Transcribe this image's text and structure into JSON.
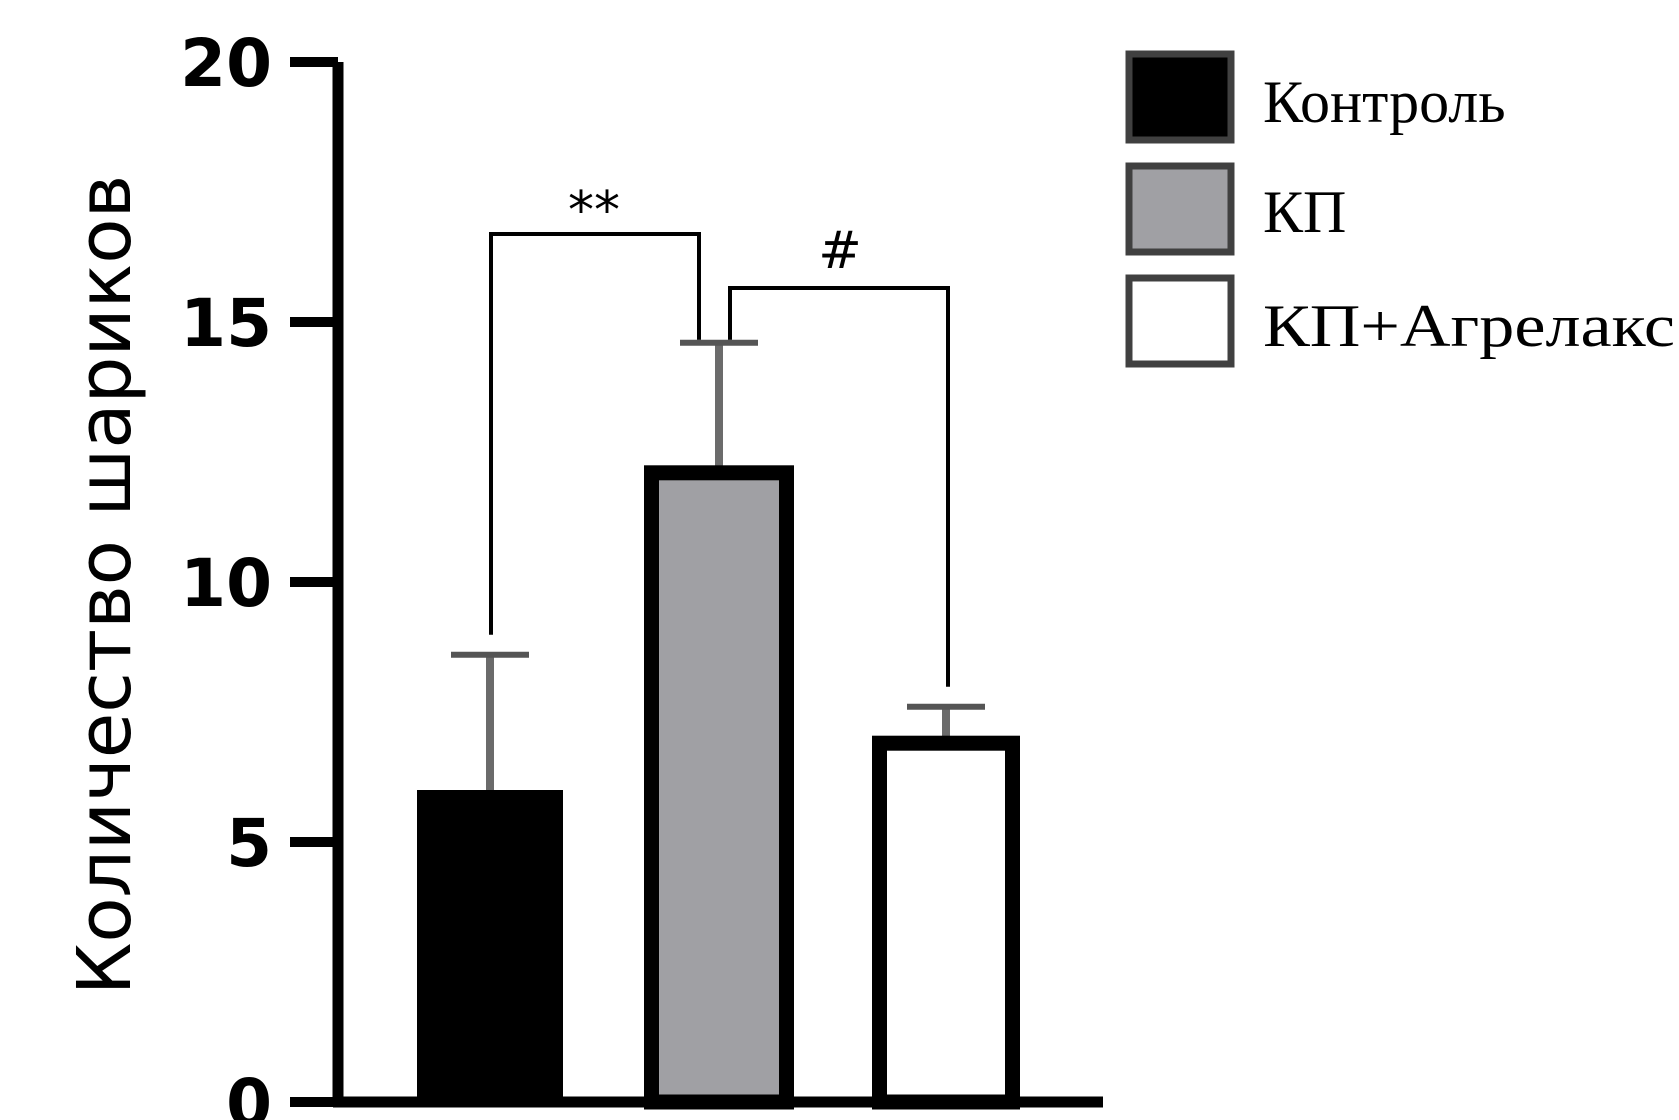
{
  "chart_data": {
    "type": "bar",
    "ylabel": "Количество шариков",
    "ylim": [
      0,
      20
    ],
    "yticks": [
      0,
      5,
      10,
      15,
      20
    ],
    "categories": [
      "Контроль",
      "КП",
      "КП+Агрелакс"
    ],
    "values": [
      6.0,
      12.1,
      6.9
    ],
    "errors": [
      2.6,
      2.5,
      0.7
    ],
    "colors": {
      "Контроль": "#000000",
      "КП": "#a0a0a4",
      "КП+Агрелакс": "#ffffff"
    },
    "legend": {
      "placement": "top-right",
      "entries": [
        "Контроль",
        "КП",
        "КП+Агрелакс"
      ]
    },
    "significance": [
      {
        "label": "**",
        "from": "Контроль",
        "to": "КП"
      },
      {
        "label": "#",
        "from": "КП",
        "to": "КП+Агрелакс"
      }
    ],
    "grid": false
  }
}
